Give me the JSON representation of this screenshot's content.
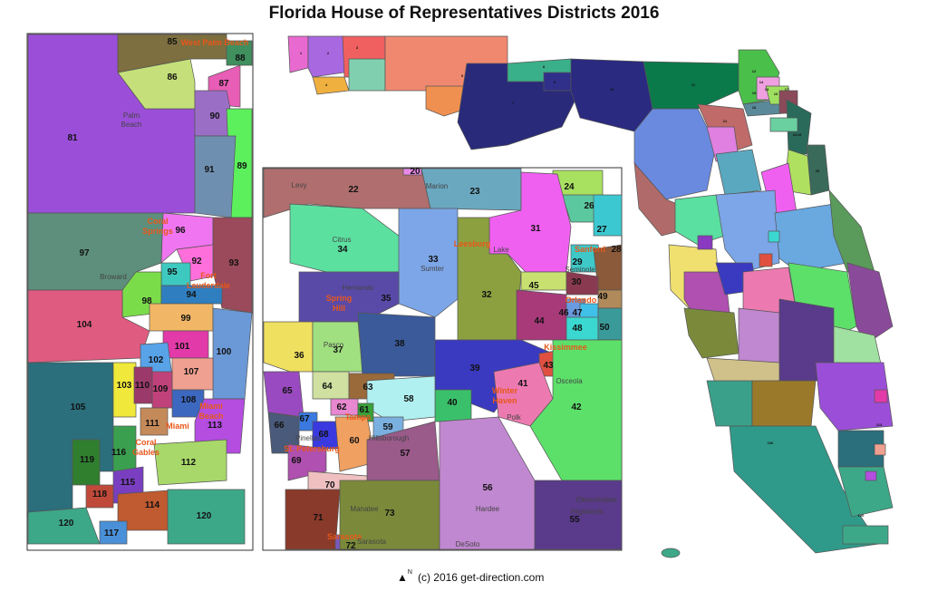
{
  "title": "Florida House of Representatives Districts 2016",
  "credit": "(c) 2016  get-direction.com",
  "north_label": "N",
  "colors": {
    "city_label": "#e8571a",
    "border": "#555555",
    "water": "#ffffff"
  },
  "south_inset": {
    "districts": [
      "81",
      "85",
      "86",
      "87",
      "88",
      "89",
      "90",
      "91",
      "92",
      "93",
      "94",
      "95",
      "96",
      "97",
      "98",
      "99",
      "100",
      "101",
      "102",
      "103",
      "104",
      "105",
      "107",
      "108",
      "109",
      "110",
      "111",
      "112",
      "113",
      "114",
      "115",
      "116",
      "117",
      "118",
      "119",
      "120",
      "120"
    ],
    "cities": [
      "West Palm Beach",
      "Coral",
      "Springs",
      "Fort",
      "Lauderdale",
      "Miami",
      "Beach",
      "Miami",
      "Coral",
      "Gables"
    ],
    "counties": [
      "Palm",
      "Beach",
      "Broward"
    ]
  },
  "central_inset": {
    "districts": [
      "20",
      "22",
      "23",
      "24",
      "26",
      "27",
      "28",
      "29",
      "30",
      "31",
      "32",
      "33",
      "34",
      "35",
      "36",
      "37",
      "38",
      "39",
      "40",
      "41",
      "42",
      "43",
      "44",
      "45",
      "46",
      "47",
      "48",
      "49",
      "50",
      "55",
      "56",
      "57",
      "58",
      "59",
      "60",
      "61",
      "62",
      "63",
      "64",
      "65",
      "66",
      "67",
      "68",
      "69",
      "70",
      "71",
      "72",
      "73"
    ],
    "cities": [
      "Leesburg",
      "Sanford",
      "Orlando",
      "Spring",
      "Hill",
      "Kissimmee",
      "Winter",
      "Haven",
      "Tampa",
      "St. Petersburg",
      "Sarasota"
    ],
    "counties": [
      "Levy",
      "Marion",
      "Citrus",
      "Sumter",
      "Lake",
      "Seminole",
      "Hernando",
      "Pasco",
      "Polk",
      "Osceola",
      "Hillsborough",
      "Pinellas",
      "Manatee",
      "Hardee",
      "DeSoto",
      "Highlands",
      "Okeechobee",
      "Sarasota"
    ]
  },
  "state_map": {
    "districts": [
      "1",
      "2",
      "3",
      "4",
      "5",
      "7",
      "8",
      "9",
      "10",
      "11",
      "12",
      "13",
      "14",
      "15",
      "16",
      "17",
      "18",
      "19",
      "21",
      "24",
      "25",
      "106",
      "113",
      "120"
    ]
  }
}
